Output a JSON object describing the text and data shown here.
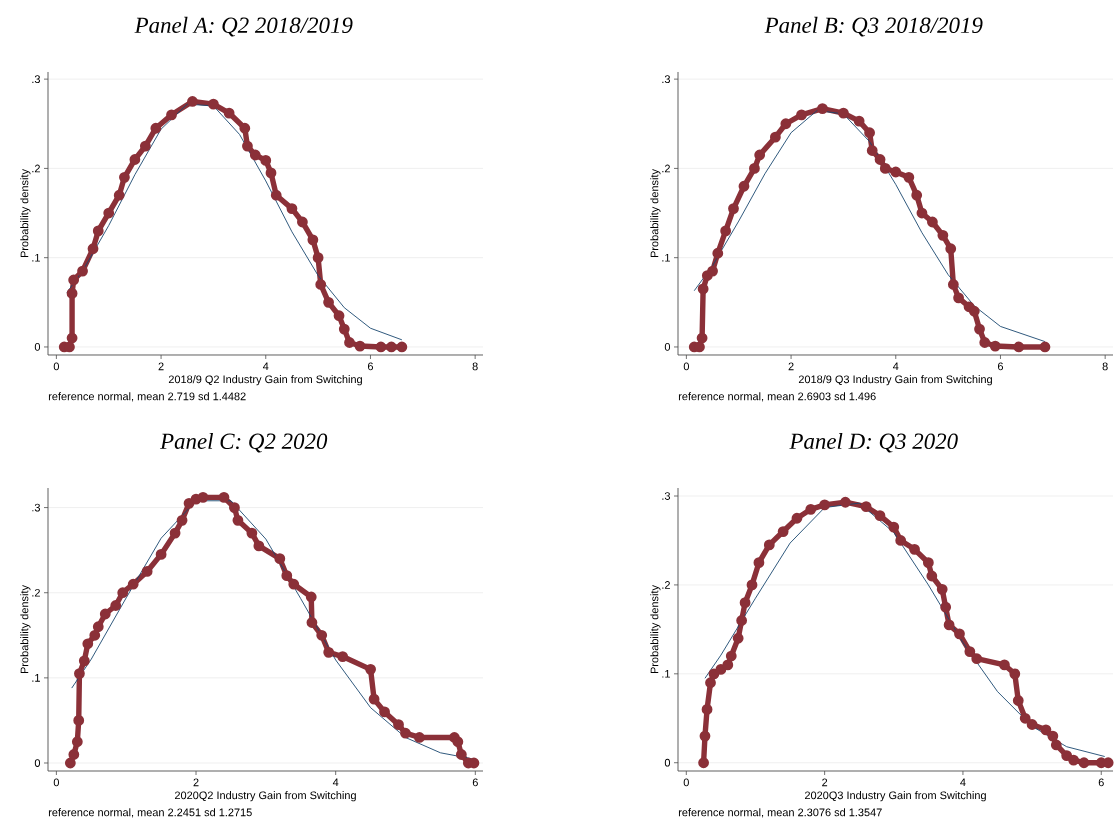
{
  "chart_data": [
    {
      "type": "line",
      "title": "Panel A: Q2 2018/2019",
      "xlabel": "2018/9 Q2 Industry Gain from Switching",
      "ylabel": "Probability density",
      "annotations": [
        "reference normal, mean 2.719 sd 1.4482"
      ],
      "xlim": [
        -0.16,
        8.15
      ],
      "ylim": [
        -0.009,
        0.308
      ],
      "xticks": [
        0,
        2,
        4,
        6,
        8
      ],
      "yticks": [
        0,
        {
          "value": 0.1,
          "label": ".1"
        },
        {
          "value": 0.2,
          "label": ".2"
        },
        {
          "value": 0.3,
          "label": ".3"
        }
      ],
      "grid": "y",
      "series": [
        {
          "color": "#8b3038",
          "marker": "circle",
          "x": [
            0.15,
            0.25,
            0.3,
            0.3,
            0.33,
            0.5,
            0.7,
            0.8,
            1.0,
            1.2,
            1.3,
            1.5,
            1.7,
            1.9,
            2.2,
            2.6,
            3.0,
            3.3,
            3.6,
            3.65,
            3.8,
            4.0,
            4.1,
            4.2,
            4.5,
            4.7,
            4.9,
            5.0,
            5.05,
            5.2,
            5.4,
            5.5,
            5.6,
            5.8,
            6.2,
            6.4,
            6.6
          ],
          "values": [
            0,
            0,
            0.01,
            0.06,
            0.075,
            0.085,
            0.11,
            0.13,
            0.15,
            0.17,
            0.19,
            0.21,
            0.225,
            0.245,
            0.26,
            0.275,
            0.272,
            0.262,
            0.245,
            0.225,
            0.215,
            0.209,
            0.195,
            0.17,
            0.155,
            0.14,
            0.12,
            0.1,
            0.07,
            0.05,
            0.035,
            0.02,
            0.005,
            0.001,
            0,
            0,
            0
          ]
        },
        {
          "color": "#1a476f",
          "marker": "none",
          "x": [
            0.2,
            0.5,
            1,
            1.5,
            2,
            2.5,
            3,
            3.5,
            4,
            4.5,
            5,
            5.5,
            6,
            6.6
          ],
          "values": [
            0.061,
            0.085,
            0.136,
            0.193,
            0.244,
            0.272,
            0.27,
            0.238,
            0.186,
            0.129,
            0.08,
            0.044,
            0.021,
            0.008
          ]
        }
      ]
    },
    {
      "type": "line",
      "title": "Panel B: Q3 2018/2019",
      "xlabel": "2018/9 Q3 Industry Gain from Switching",
      "ylabel": "Probability density",
      "annotations": [
        "reference normal, mean 2.6903 sd 1.496"
      ],
      "xlim": [
        -0.16,
        8.15
      ],
      "ylim": [
        -0.009,
        0.308
      ],
      "xticks": [
        0,
        2,
        4,
        6,
        8
      ],
      "yticks": [
        0,
        {
          "value": 0.1,
          "label": ".1"
        },
        {
          "value": 0.2,
          "label": ".2"
        },
        {
          "value": 0.3,
          "label": ".3"
        }
      ],
      "grid": "y",
      "series": [
        {
          "color": "#8b3038",
          "marker": "circle",
          "x": [
            0.15,
            0.25,
            0.3,
            0.32,
            0.4,
            0.5,
            0.6,
            0.75,
            0.9,
            1.1,
            1.3,
            1.4,
            1.7,
            1.9,
            2.2,
            2.6,
            3.0,
            3.3,
            3.5,
            3.55,
            3.7,
            3.8,
            4.0,
            4.25,
            4.4,
            4.5,
            4.7,
            4.9,
            5.05,
            5.1,
            5.2,
            5.4,
            5.5,
            5.6,
            5.7,
            5.9,
            6.35,
            6.85
          ],
          "values": [
            0,
            0,
            0.01,
            0.065,
            0.08,
            0.085,
            0.105,
            0.13,
            0.155,
            0.18,
            0.2,
            0.215,
            0.235,
            0.25,
            0.26,
            0.267,
            0.262,
            0.253,
            0.24,
            0.22,
            0.21,
            0.2,
            0.196,
            0.19,
            0.17,
            0.15,
            0.14,
            0.125,
            0.11,
            0.07,
            0.055,
            0.045,
            0.04,
            0.02,
            0.005,
            0.001,
            0,
            0
          ]
        },
        {
          "color": "#1a476f",
          "marker": "none",
          "x": [
            0.15,
            0.5,
            1,
            1.5,
            2,
            2.5,
            3,
            3.5,
            4,
            4.5,
            5,
            5.5,
            6,
            6.85
          ],
          "values": [
            0.063,
            0.091,
            0.141,
            0.194,
            0.24,
            0.265,
            0.261,
            0.23,
            0.182,
            0.128,
            0.081,
            0.046,
            0.023,
            0.006
          ]
        }
      ]
    },
    {
      "type": "line",
      "title": "Panel C: Q2 2020",
      "xlabel": "2020Q2 Industry Gain from Switching",
      "ylabel": "Probability density",
      "annotations": [
        "reference normal, mean 2.2451 sd 1.2715"
      ],
      "xlim": [
        -0.12,
        6.11
      ],
      "ylim": [
        -0.0094,
        0.323
      ],
      "xticks": [
        0,
        2,
        4,
        6
      ],
      "yticks": [
        0,
        {
          "value": 0.1,
          "label": ".1"
        },
        {
          "value": 0.2,
          "label": ".2"
        },
        {
          "value": 0.3,
          "label": ".3"
        }
      ],
      "grid": "y",
      "series": [
        {
          "color": "#8b3038",
          "marker": "circle",
          "x": [
            0.2,
            0.25,
            0.3,
            0.32,
            0.33,
            0.4,
            0.45,
            0.55,
            0.6,
            0.7,
            0.85,
            0.95,
            1.1,
            1.3,
            1.5,
            1.7,
            1.8,
            1.9,
            2.0,
            2.1,
            2.4,
            2.55,
            2.6,
            2.8,
            2.9,
            3.2,
            3.3,
            3.4,
            3.65,
            3.66,
            3.8,
            3.9,
            4.1,
            4.5,
            4.55,
            4.7,
            4.9,
            5.0,
            5.2,
            5.7,
            5.75,
            5.8,
            5.9,
            5.98
          ],
          "values": [
            0,
            0.01,
            0.025,
            0.05,
            0.105,
            0.12,
            0.14,
            0.15,
            0.16,
            0.175,
            0.185,
            0.2,
            0.21,
            0.225,
            0.245,
            0.27,
            0.285,
            0.305,
            0.31,
            0.312,
            0.312,
            0.3,
            0.285,
            0.27,
            0.255,
            0.24,
            0.22,
            0.21,
            0.195,
            0.165,
            0.15,
            0.13,
            0.125,
            0.11,
            0.075,
            0.06,
            0.045,
            0.035,
            0.03,
            0.03,
            0.025,
            0.01,
            0,
            0
          ]
        },
        {
          "color": "#1a476f",
          "marker": "none",
          "x": [
            0.22,
            0.5,
            1,
            1.5,
            2,
            2.5,
            3,
            3.5,
            4,
            4.5,
            5,
            5.5,
            5.95
          ],
          "values": [
            0.088,
            0.122,
            0.194,
            0.264,
            0.308,
            0.308,
            0.263,
            0.193,
            0.121,
            0.065,
            0.03,
            0.012,
            0.005
          ]
        }
      ]
    },
    {
      "type": "line",
      "title": "Panel D: Q3 2020",
      "xlabel": "2020Q3 Industry Gain from Switching",
      "ylabel": "Probability density",
      "annotations": [
        "reference normal, mean 2.3076 sd 1.3547"
      ],
      "xlim": [
        -0.12,
        6.17
      ],
      "ylim": [
        -0.0093,
        0.309
      ],
      "xticks": [
        0,
        2,
        4,
        6
      ],
      "yticks": [
        0,
        {
          "value": 0.1,
          "label": ".1"
        },
        {
          "value": 0.2,
          "label": ".2"
        },
        {
          "value": 0.3,
          "label": ".3"
        }
      ],
      "grid": "y",
      "series": [
        {
          "color": "#8b3038",
          "marker": "circle",
          "x": [
            0.25,
            0.27,
            0.3,
            0.35,
            0.4,
            0.5,
            0.6,
            0.65,
            0.75,
            0.8,
            0.85,
            0.95,
            1.05,
            1.2,
            1.4,
            1.6,
            1.8,
            2.0,
            2.3,
            2.6,
            2.8,
            3.0,
            3.1,
            3.3,
            3.5,
            3.55,
            3.7,
            3.75,
            3.8,
            3.95,
            4.1,
            4.2,
            4.6,
            4.75,
            4.8,
            4.9,
            5.0,
            5.2,
            5.3,
            5.35,
            5.5,
            5.6,
            5.75,
            6.0,
            6.1
          ],
          "values": [
            0,
            0.03,
            0.06,
            0.09,
            0.1,
            0.105,
            0.11,
            0.12,
            0.14,
            0.16,
            0.18,
            0.2,
            0.225,
            0.245,
            0.26,
            0.275,
            0.285,
            0.29,
            0.293,
            0.288,
            0.278,
            0.265,
            0.25,
            0.24,
            0.225,
            0.21,
            0.195,
            0.175,
            0.155,
            0.145,
            0.125,
            0.117,
            0.11,
            0.1,
            0.07,
            0.05,
            0.043,
            0.037,
            0.03,
            0.02,
            0.008,
            0.003,
            0,
            0,
            0
          ]
        },
        {
          "color": "#1a476f",
          "marker": "none",
          "x": [
            0.27,
            0.5,
            1,
            1.5,
            2,
            2.5,
            3,
            3.5,
            4,
            4.5,
            5,
            5.5,
            6.05
          ],
          "values": [
            0.095,
            0.121,
            0.185,
            0.247,
            0.287,
            0.292,
            0.259,
            0.2,
            0.135,
            0.08,
            0.041,
            0.018,
            0.007
          ]
        }
      ]
    }
  ]
}
